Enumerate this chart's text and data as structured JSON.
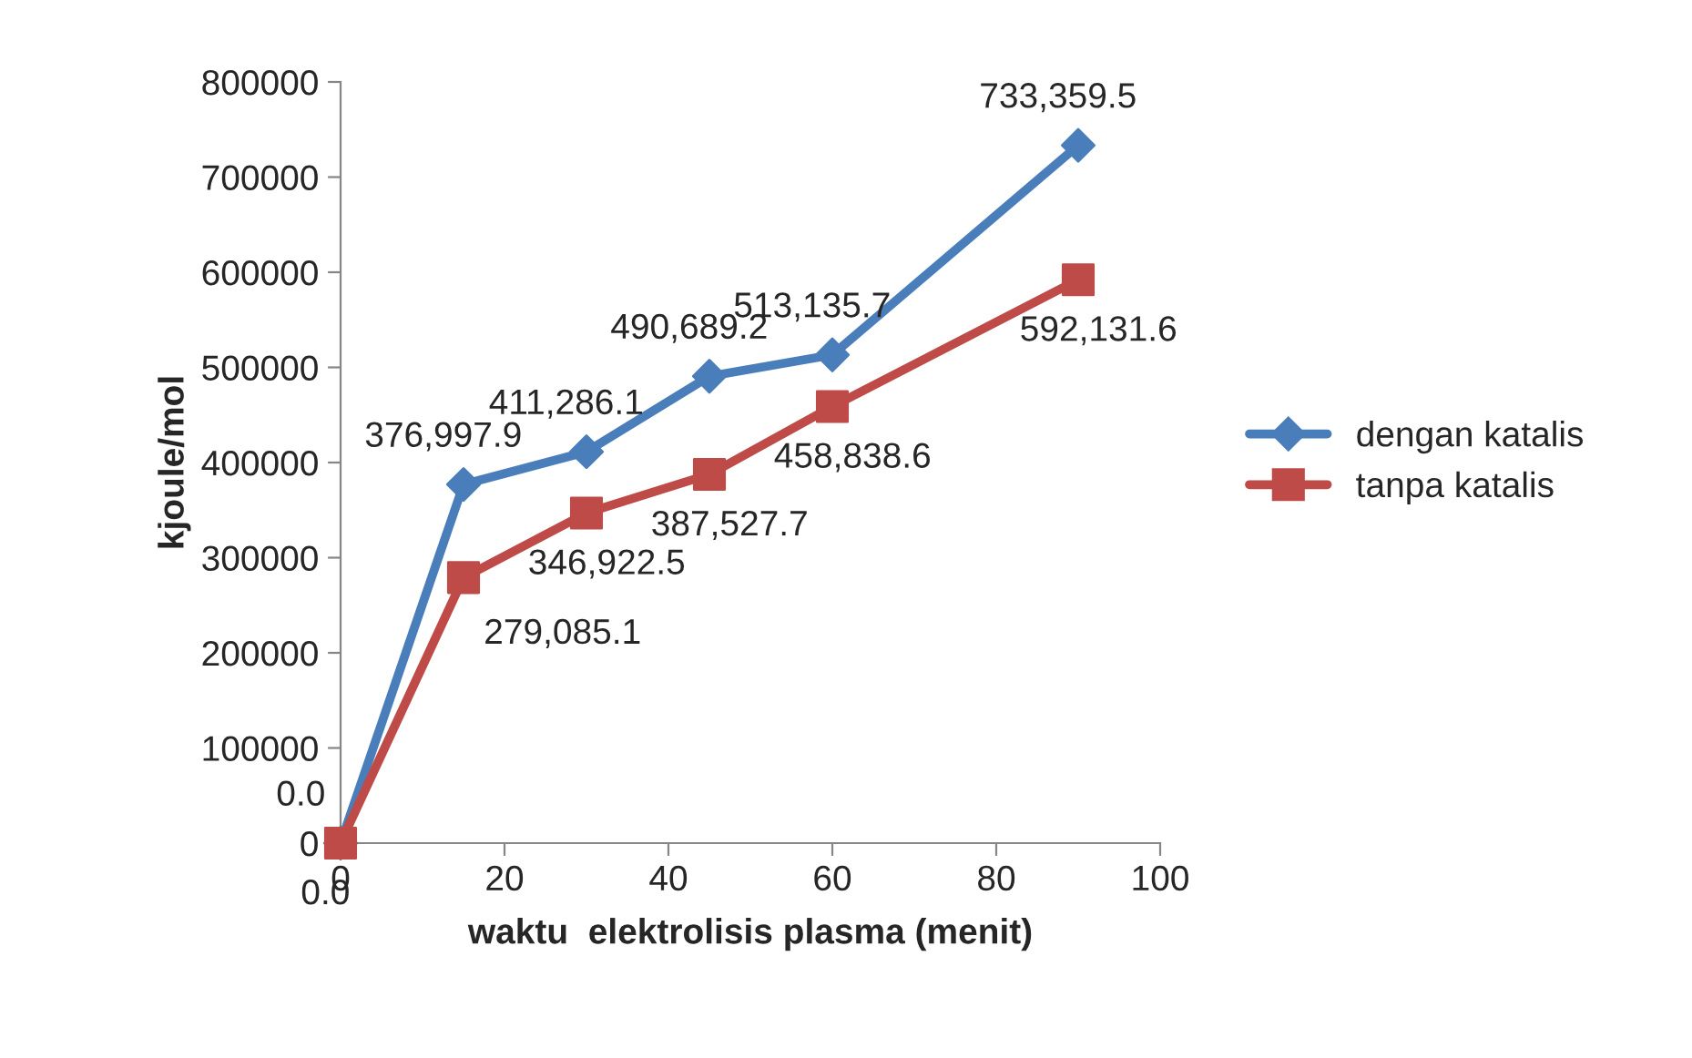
{
  "chart_data": {
    "type": "line",
    "xlabel": "waktu  elektrolisis plasma (menit)",
    "ylabel": "kjoule/mol",
    "x": [
      0,
      15,
      30,
      45,
      60,
      90
    ],
    "series": [
      {
        "name": "dengan katalis",
        "color": "#4a7ebb",
        "marker": "diamond",
        "values": [
          0.0,
          376997.9,
          411286.1,
          490689.2,
          513135.7,
          733359.5
        ],
        "value_labels": [
          "0.0",
          "376,997.9",
          "411,286.1",
          "490,689.2",
          "513,135.7",
          "733,359.5"
        ]
      },
      {
        "name": "tanpa katalis",
        "color": "#be4b48",
        "marker": "square",
        "values": [
          0.0,
          279085.1,
          346922.5,
          387527.7,
          458838.6,
          592131.6
        ],
        "value_labels": [
          "0.0",
          "279,085.1",
          "346,922.5",
          "387,527.7",
          "458,838.6",
          "592,131.6"
        ]
      }
    ],
    "xlim": [
      0,
      100
    ],
    "xticks": [
      0,
      20,
      40,
      60,
      80,
      100
    ],
    "ylim": [
      0,
      800000
    ],
    "yticks": [
      0,
      100000,
      200000,
      300000,
      400000,
      500000,
      600000,
      700000,
      800000
    ],
    "grid": false,
    "legend": "right",
    "line_style": "solid"
  }
}
